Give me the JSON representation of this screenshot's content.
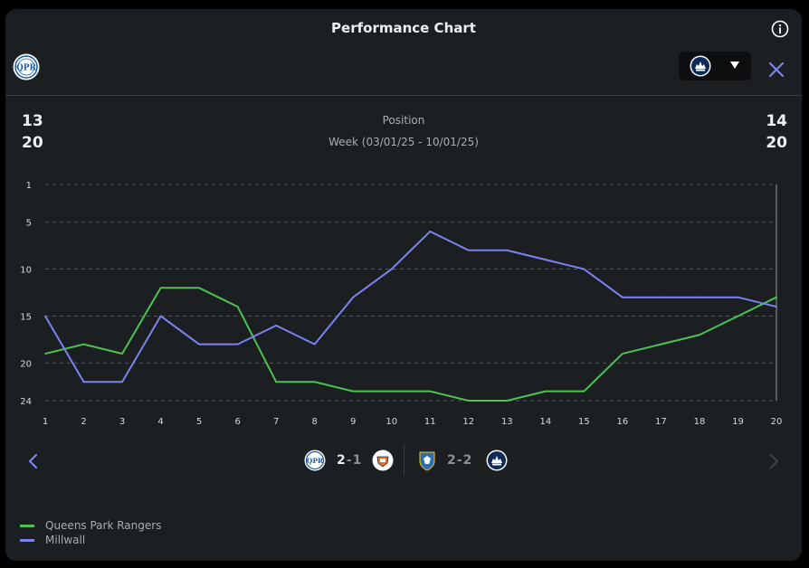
{
  "header": {
    "title": "Performance Chart",
    "info_icon": "info-icon",
    "close_icon": "close-icon"
  },
  "teams": {
    "left": {
      "name": "Queens Park Rangers",
      "badge_icon": "qpr-crest-icon",
      "color": "#4cc254"
    },
    "right": {
      "name": "Millwall",
      "badge_icon": "millwall-crest-icon",
      "color": "#7b83f0"
    }
  },
  "dropdown": {
    "selected_icon": "millwall-crest-icon",
    "caret_icon": "caret-down-icon"
  },
  "summary": {
    "left_position": "13",
    "left_week": "20",
    "right_position": "14",
    "right_week": "20",
    "metric_label": "Position",
    "week_label": "Week (03/01/25 - 10/01/25)"
  },
  "chart_data": {
    "type": "line",
    "x": [
      1,
      2,
      3,
      4,
      5,
      6,
      7,
      8,
      9,
      10,
      11,
      12,
      13,
      14,
      15,
      16,
      17,
      18,
      19,
      20
    ],
    "y_ticks": [
      1,
      5,
      10,
      15,
      20,
      24
    ],
    "ylim": [
      1,
      24
    ],
    "y_inverted": true,
    "grid": "dashed horizontal",
    "series": [
      {
        "name": "Queens Park Rangers",
        "color": "#4cc254",
        "values": [
          19,
          18,
          19,
          12,
          12,
          14,
          22,
          22,
          23,
          23,
          23,
          24,
          24,
          23,
          23,
          19,
          18,
          17,
          15,
          13
        ]
      },
      {
        "name": "Millwall",
        "color": "#7b83f0",
        "values": [
          15,
          22,
          22,
          15,
          18,
          18,
          16,
          18,
          13,
          10,
          6,
          8,
          8,
          9,
          10,
          13,
          13,
          13,
          13,
          14
        ]
      }
    ],
    "highlighted_week": 20
  },
  "matches": [
    {
      "home_icon": "qpr-crest-icon",
      "home_goals": "2",
      "sep": "-",
      "away_goals": "1",
      "away_icon": "luton-crest-icon"
    },
    {
      "home_icon": "sheffield-wednesday-crest-icon",
      "home_goals": "2",
      "sep": "-",
      "away_goals": "2",
      "away_icon": "millwall-crest-icon"
    }
  ],
  "nav": {
    "prev_icon": "chevron-left-icon",
    "next_icon": "chevron-right-icon",
    "accent": "#7b83f0",
    "disabled": "#3d4247"
  },
  "legend": [
    {
      "label": "Queens Park Rangers",
      "color": "#4cc254"
    },
    {
      "label": "Millwall",
      "color": "#7b83f0"
    }
  ]
}
